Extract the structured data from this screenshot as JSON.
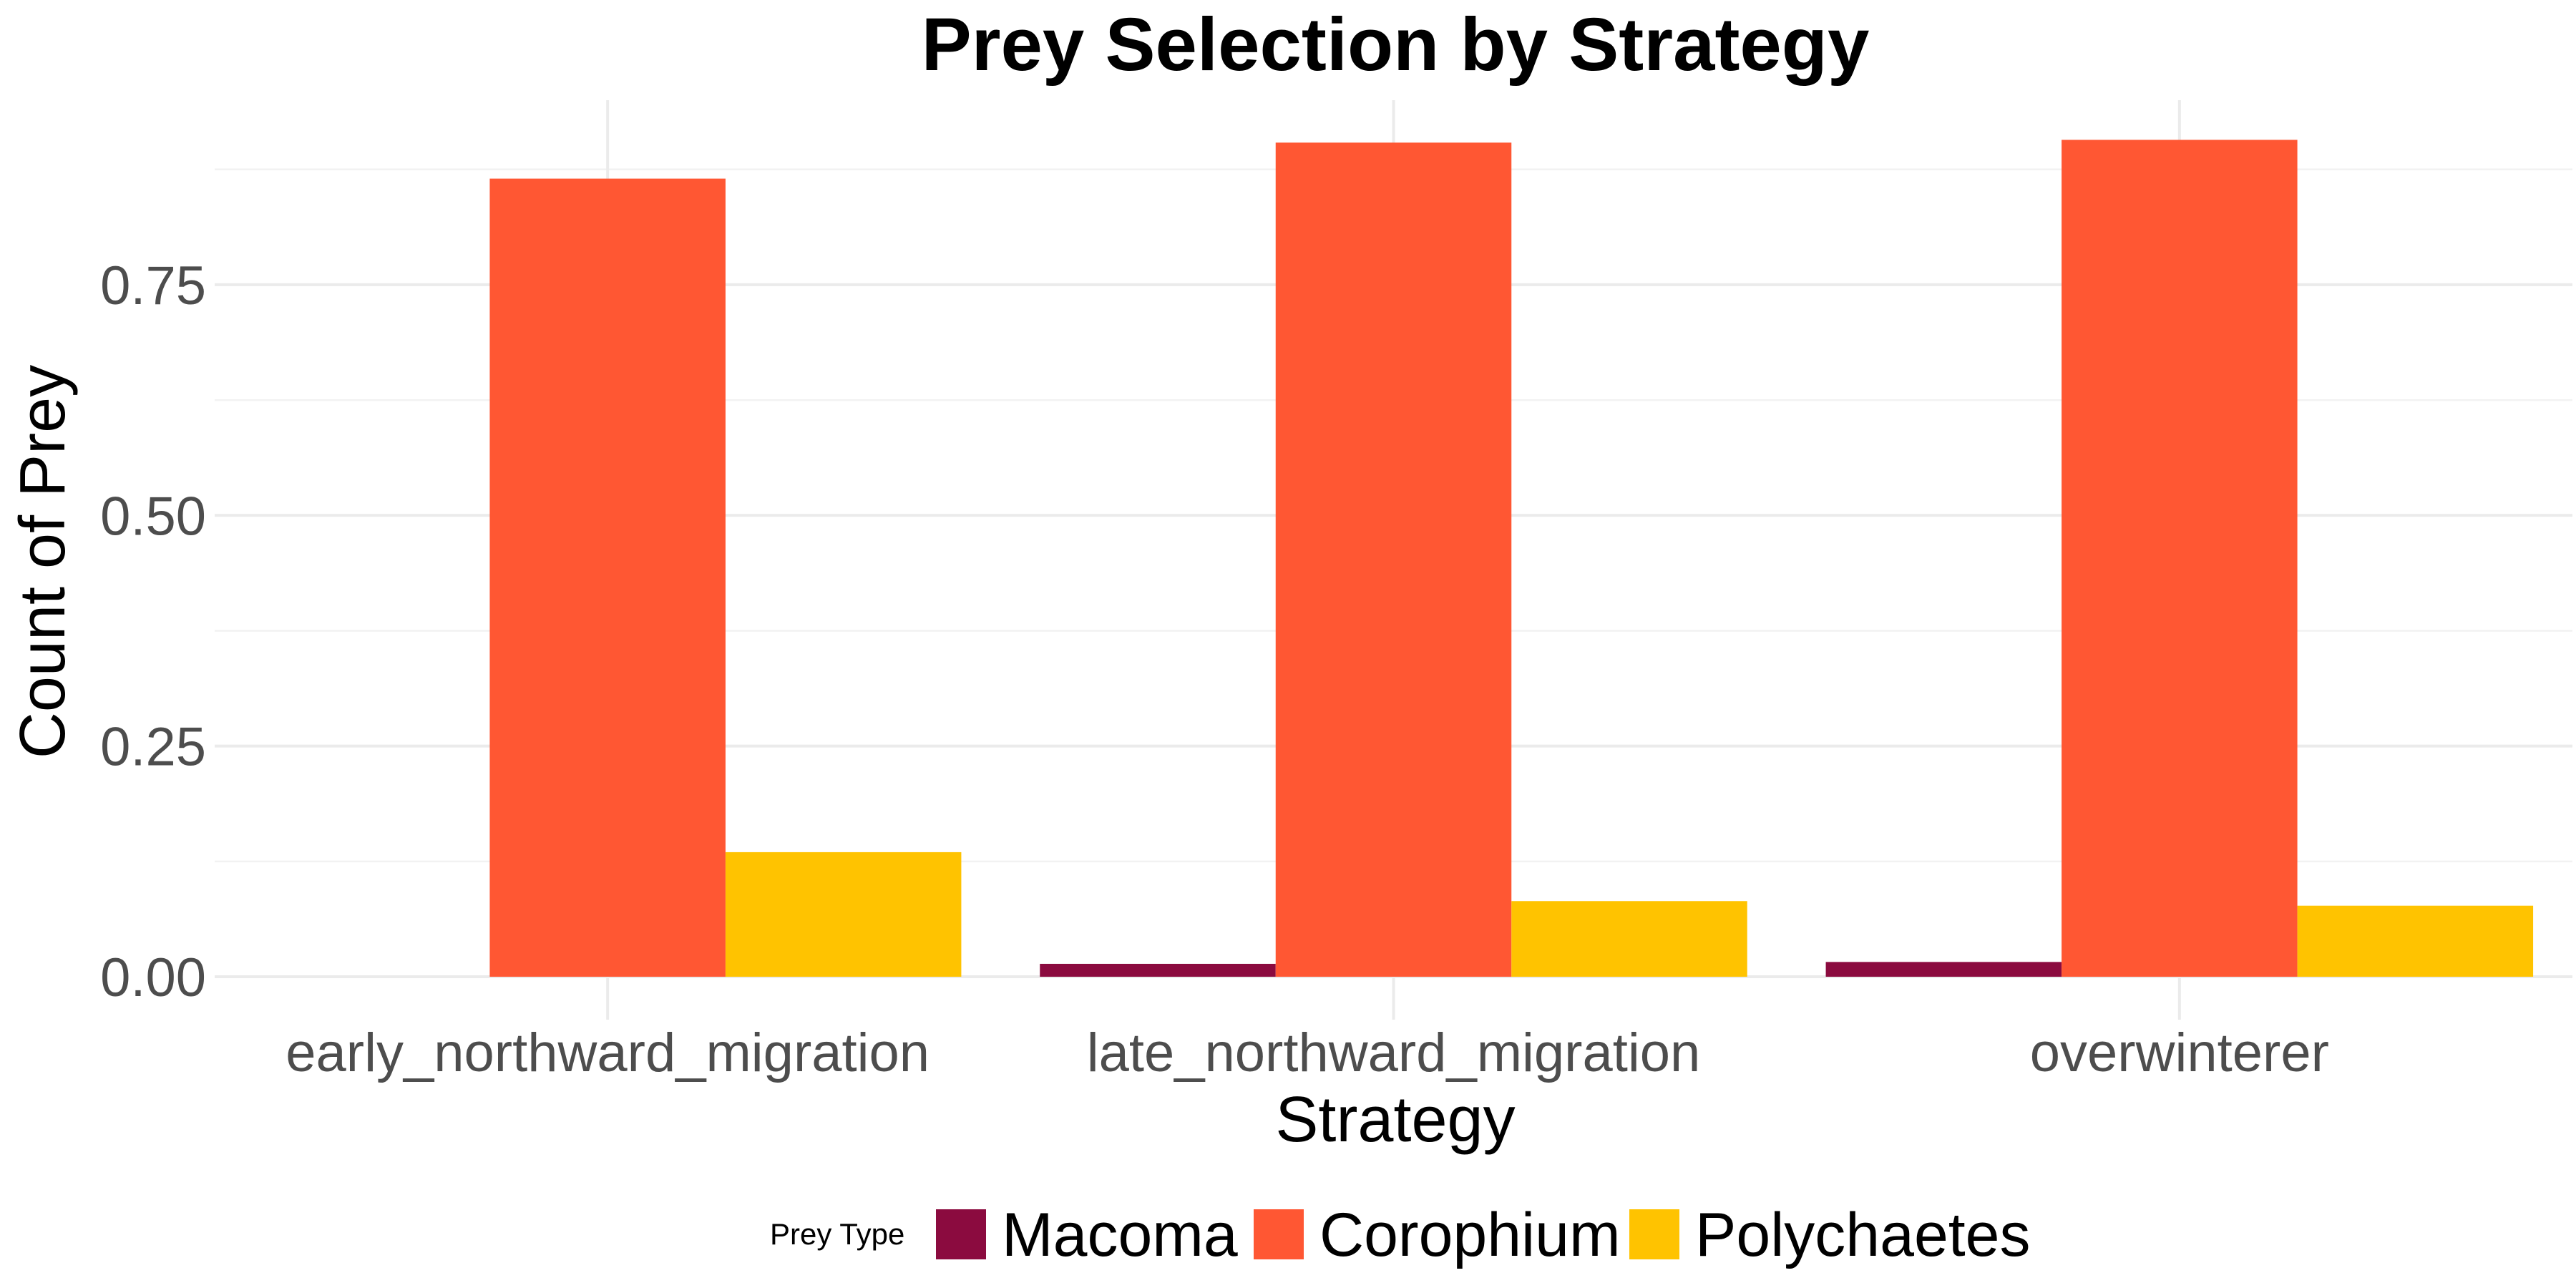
{
  "chart_data": {
    "type": "bar",
    "title": "Prey Selection by Strategy",
    "xlabel": "Strategy",
    "ylabel": "Count of Prey",
    "categories": [
      "early_northward_migration",
      "late_northward_migration",
      "overwinterer"
    ],
    "series": [
      {
        "name": "Macoma",
        "color": "#8b0b3f",
        "values": [
          0.0,
          0.014,
          0.016
        ]
      },
      {
        "name": "Corophium",
        "color": "#ff5733",
        "values": [
          0.865,
          0.904,
          0.907
        ]
      },
      {
        "name": "Polychaetes",
        "color": "#ffc300",
        "values": [
          0.135,
          0.082,
          0.077
        ]
      }
    ],
    "ylim": [
      0,
      0.95
    ],
    "yticks": [
      0.0,
      0.25,
      0.5,
      0.75
    ],
    "ytick_labels": [
      "0.00",
      "0.25",
      "0.50",
      "0.75"
    ],
    "grid": true,
    "legend": {
      "title": "Prey Type",
      "position": "bottom"
    }
  }
}
